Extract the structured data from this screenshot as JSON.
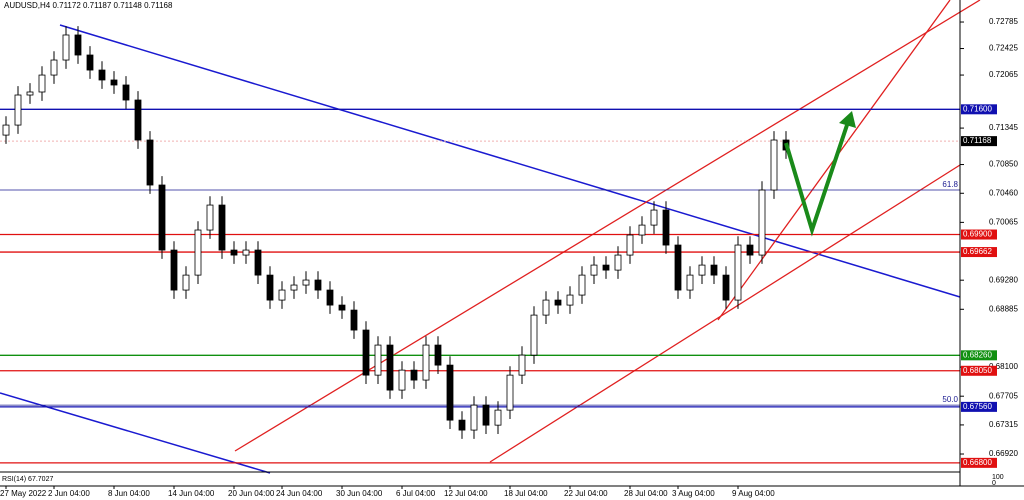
{
  "chart_data": {
    "type": "candlestick",
    "title": "AUDUSD,H4  0.71172 0.71187 0.71148 0.71168",
    "categories": [
      "27 May 2022",
      null,
      null,
      null,
      "2 Jun 04:00",
      null,
      null,
      null,
      null,
      "8 Jun 04:00",
      null,
      null,
      null,
      null,
      "14 Jun 04:00",
      null,
      null,
      null,
      null,
      "20 Jun 04:00",
      null,
      null,
      null,
      "24 Jun 04:00",
      null,
      null,
      null,
      null,
      "30 Jun 04:00",
      null,
      null,
      null,
      null,
      "6 Jul 04:00",
      null,
      null,
      null,
      "12 Jul 04:00",
      null,
      null,
      null,
      null,
      "18 Jul 04:00",
      null,
      null,
      null,
      null,
      "22 Jul 04:00",
      null,
      null,
      null,
      null,
      "28 Jul 04:00",
      null,
      null,
      null,
      "3 Aug 04:00",
      null,
      null,
      null,
      null,
      "9 Aug 04:00",
      null,
      null,
      null,
      null
    ],
    "open": [
      0.7125,
      0.71386,
      0.71794,
      0.71835,
      0.72065,
      0.72269,
      0.72609,
      0.72337,
      0.72133,
      0.71998,
      0.7193,
      0.71726,
      0.71183,
      0.70572,
      0.69689,
      0.69146,
      0.69349,
      0.69961,
      0.703,
      0.69689,
      0.69621,
      0.69689,
      0.69349,
      0.6901,
      0.69146,
      0.69214,
      0.69282,
      0.69146,
      0.68942,
      0.68874,
      0.68603,
      0.67991,
      0.68399,
      0.67788,
      0.68059,
      0.67924,
      0.68399,
      0.68127,
      0.6738,
      0.67245,
      0.67584,
      0.67312,
      0.67516,
      0.67991,
      0.68263,
      0.68806,
      0.6901,
      0.68942,
      0.69078,
      0.69349,
      0.69485,
      0.69417,
      0.69621,
      0.69893,
      0.70028,
      0.70232,
      0.69757,
      0.69146,
      0.69349,
      0.69485,
      0.69349,
      0.6901,
      0.69757,
      0.69621,
      0.70504,
      0.71183
    ],
    "close": [
      0.71386,
      0.71794,
      0.71835,
      0.72065,
      0.72269,
      0.72609,
      0.72337,
      0.72133,
      0.71998,
      0.7193,
      0.71726,
      0.71183,
      0.70572,
      0.69689,
      0.69146,
      0.69349,
      0.69961,
      0.703,
      0.69689,
      0.69621,
      0.69689,
      0.69349,
      0.6901,
      0.69146,
      0.69214,
      0.69282,
      0.69146,
      0.68942,
      0.68874,
      0.68603,
      0.67991,
      0.68399,
      0.67788,
      0.68059,
      0.67924,
      0.68399,
      0.68127,
      0.6738,
      0.67245,
      0.67584,
      0.67312,
      0.67516,
      0.67991,
      0.68263,
      0.68806,
      0.6901,
      0.68942,
      0.69078,
      0.69349,
      0.69485,
      0.69417,
      0.69621,
      0.69893,
      0.70028,
      0.70232,
      0.69757,
      0.69146,
      0.69349,
      0.69485,
      0.69349,
      0.6901,
      0.69757,
      0.69621,
      0.70504,
      0.71183,
      0.71047
    ],
    "high": [
      0.71506,
      0.71914,
      0.71955,
      0.72185,
      0.72389,
      0.72729,
      0.72729,
      0.72457,
      0.72253,
      0.72118,
      0.7205,
      0.71846,
      0.71303,
      0.70692,
      0.69809,
      0.69469,
      0.70081,
      0.7042,
      0.7042,
      0.69809,
      0.69809,
      0.69809,
      0.69469,
      0.69266,
      0.69334,
      0.69402,
      0.69402,
      0.69266,
      0.69062,
      0.68994,
      0.68723,
      0.68519,
      0.68519,
      0.68179,
      0.68179,
      0.68519,
      0.68519,
      0.68247,
      0.675,
      0.67704,
      0.67704,
      0.67636,
      0.68111,
      0.68383,
      0.68926,
      0.6913,
      0.6913,
      0.69198,
      0.69469,
      0.69605,
      0.69605,
      0.69741,
      0.70013,
      0.70148,
      0.70352,
      0.70352,
      0.69877,
      0.69469,
      0.69605,
      0.69605,
      0.69469,
      0.69877,
      0.69877,
      0.70624,
      0.71303,
      0.71303
    ],
    "low": [
      0.7113,
      0.71266,
      0.71674,
      0.71715,
      0.71945,
      0.72149,
      0.72217,
      0.72013,
      0.71878,
      0.7181,
      0.71606,
      0.71063,
      0.70452,
      0.69569,
      0.69026,
      0.69026,
      0.69229,
      0.69841,
      0.69569,
      0.69501,
      0.69501,
      0.69229,
      0.6889,
      0.6889,
      0.69026,
      0.69094,
      0.69026,
      0.68822,
      0.68754,
      0.68483,
      0.67871,
      0.67871,
      0.67668,
      0.67668,
      0.67804,
      0.67804,
      0.68007,
      0.6726,
      0.67125,
      0.67125,
      0.67192,
      0.67192,
      0.67396,
      0.67871,
      0.68143,
      0.68686,
      0.68822,
      0.68822,
      0.68958,
      0.69229,
      0.69297,
      0.69297,
      0.69501,
      0.69773,
      0.69908,
      0.69637,
      0.69026,
      0.69026,
      0.69229,
      0.69229,
      0.6889,
      0.6889,
      0.69501,
      0.69501,
      0.70384,
      0.70927
    ],
    "up_color": "#ffffff",
    "down_color": "#000000",
    "ylim": [
      0.66703,
      0.73084
    ],
    "yticks": [
      0.72785,
      0.72425,
      0.72065,
      0.71345,
      {
        "value": 0.7085,
        "label": "0.70850"
      },
      {
        "value": 0.7046,
        "label": "0.70460"
      },
      0.70065,
      {
        "value": 0.6928,
        "label": "0.69280"
      },
      0.68885,
      {
        "value": 0.681,
        "label": "0.68100"
      },
      0.67705,
      0.67315,
      {
        "value": 0.6692,
        "label": "0.66920"
      }
    ],
    "levels": [
      {
        "value": 0.716,
        "label": "0.71600",
        "color": "#1010b0"
      },
      {
        "value": 0.71168,
        "label": "0.71168",
        "color": "#000000"
      },
      {
        "value": 0.699,
        "label": "0.69900",
        "color": "#e01010"
      },
      {
        "value": 0.69662,
        "label": "0.69662",
        "color": "#e01010"
      },
      {
        "value": 0.6826,
        "label": "0.68260",
        "color": "#109010"
      },
      {
        "value": 0.6805,
        "label": "0.68050",
        "color": "#e01010"
      },
      {
        "value": 0.6756,
        "label": "0.67560",
        "color": "#1010b0"
      },
      {
        "value": 0.668,
        "label": "0.66800",
        "color": "#e01010"
      }
    ],
    "fib_levels": [
      {
        "value": 0.70504,
        "label": "61.8"
      },
      {
        "value": 0.67584,
        "label": "50.0"
      }
    ],
    "indicator": {
      "label": "RSI(14) 67.7027",
      "ticks": [
        100,
        0
      ]
    }
  }
}
